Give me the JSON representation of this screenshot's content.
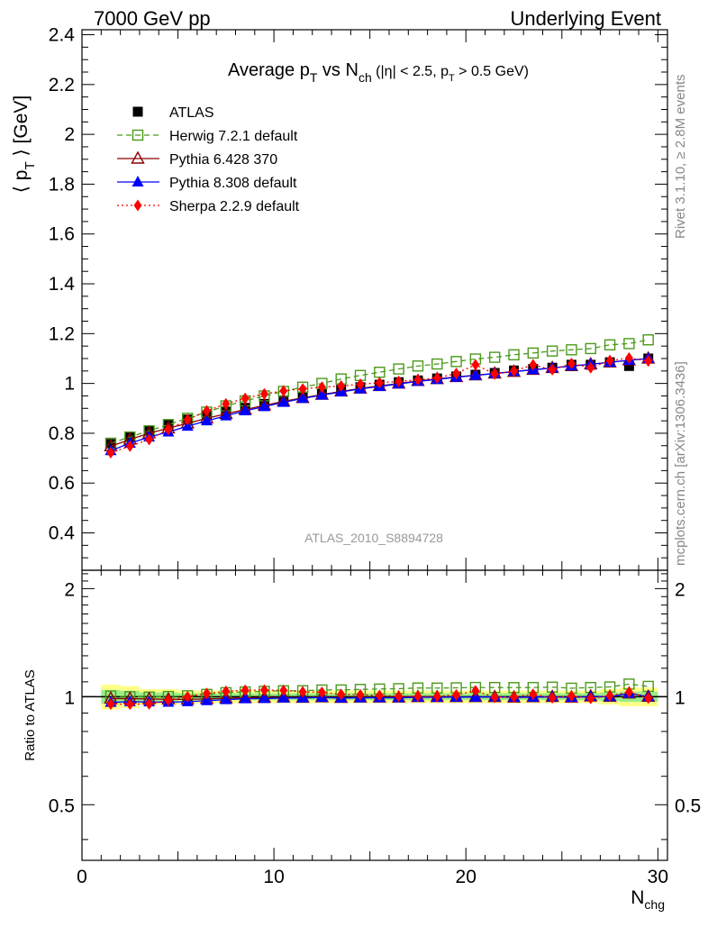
{
  "header": {
    "left": "7000 GeV pp",
    "right": "Underlying Event"
  },
  "side_labels": {
    "rivet": "Rivet 3.1.10, ≥ 2.8M events",
    "mcplots": "mcplots.cern.ch [arXiv:1306.3436]"
  },
  "chart_data": {
    "type": "scatter",
    "title": "Average p_T vs N_ch (|η| < 2.5, p_T > 0.5 GeV)",
    "analysis": "ATLAS_2010_S8894728",
    "xlabel": "N_chg",
    "ylabel": "⟨ p_T ⟩ [GeV]",
    "ratio_ylabel": "Ratio to ATLAS",
    "xlim": [
      0,
      30.5
    ],
    "ylim": [
      0.25,
      2.42
    ],
    "ratio_ylim": [
      0.35,
      2.25
    ],
    "x_ticks": [
      0,
      10,
      20,
      30
    ],
    "y_ticks": [
      0.4,
      0.6,
      0.8,
      1,
      1.2,
      1.4,
      1.6,
      1.8,
      2,
      2.2,
      2.4
    ],
    "ratio_ticks": [
      0.5,
      1,
      2
    ],
    "x": [
      1.5,
      2.5,
      3.5,
      4.5,
      5.5,
      6.5,
      7.5,
      8.5,
      9.5,
      10.5,
      11.5,
      12.5,
      13.5,
      14.5,
      15.5,
      16.5,
      17.5,
      18.5,
      19.5,
      20.5,
      21.5,
      22.5,
      23.5,
      24.5,
      25.5,
      26.5,
      27.5,
      28.5,
      29.5
    ],
    "series": [
      {
        "name": "ATLAS",
        "color": "#000000",
        "marker": "filled-square",
        "line": "none",
        "values": [
          0.757,
          0.785,
          0.812,
          0.834,
          0.855,
          0.872,
          0.887,
          0.902,
          0.918,
          0.932,
          0.948,
          0.958,
          0.975,
          0.985,
          0.995,
          1.005,
          1.012,
          1.02,
          1.028,
          1.035,
          1.042,
          1.052,
          1.058,
          1.063,
          1.075,
          1.075,
          1.085,
          1.07,
          1.1
        ],
        "band_lo": [
          0.92,
          0.93,
          0.95,
          0.95,
          0.96,
          0.96,
          0.96,
          0.96,
          0.96,
          0.96,
          0.96,
          0.96,
          0.96,
          0.96,
          0.96,
          0.96,
          0.96,
          0.96,
          0.96,
          0.96,
          0.96,
          0.96,
          0.96,
          0.96,
          0.96,
          0.96,
          0.95,
          0.94,
          0.94
        ],
        "band_hi": [
          1.08,
          1.07,
          1.05,
          1.05,
          1.04,
          1.04,
          1.04,
          1.04,
          1.04,
          1.04,
          1.04,
          1.04,
          1.04,
          1.04,
          1.04,
          1.04,
          1.04,
          1.04,
          1.04,
          1.04,
          1.04,
          1.04,
          1.04,
          1.04,
          1.04,
          1.04,
          1.05,
          1.06,
          1.06
        ]
      },
      {
        "name": "Herwig 7.2.1 default",
        "color": "#4a9a1a",
        "marker": "open-square",
        "line": "dashed",
        "values": [
          0.76,
          0.785,
          0.81,
          0.835,
          0.86,
          0.885,
          0.91,
          0.93,
          0.95,
          0.968,
          0.985,
          1.0,
          1.018,
          1.032,
          1.045,
          1.058,
          1.07,
          1.078,
          1.088,
          1.098,
          1.105,
          1.115,
          1.122,
          1.13,
          1.135,
          1.14,
          1.155,
          1.16,
          1.175
        ]
      },
      {
        "name": "Pythia 6.428 370",
        "color": "#8b0000",
        "marker": "open-triangle",
        "line": "solid",
        "values": [
          0.748,
          0.775,
          0.8,
          0.82,
          0.84,
          0.86,
          0.878,
          0.895,
          0.912,
          0.928,
          0.942,
          0.955,
          0.968,
          0.98,
          0.99,
          1.0,
          1.01,
          1.018,
          1.026,
          1.033,
          1.04,
          1.047,
          1.055,
          1.062,
          1.07,
          1.077,
          1.085,
          1.093,
          1.1
        ]
      },
      {
        "name": "Pythia 8.308 default",
        "color": "#0000ff",
        "marker": "filled-triangle",
        "line": "solid",
        "values": [
          0.73,
          0.76,
          0.785,
          0.805,
          0.828,
          0.85,
          0.87,
          0.89,
          0.907,
          0.924,
          0.94,
          0.953,
          0.966,
          0.978,
          0.988,
          0.998,
          1.008,
          1.016,
          1.025,
          1.032,
          1.04,
          1.048,
          1.055,
          1.062,
          1.07,
          1.077,
          1.085,
          1.093,
          1.1
        ]
      },
      {
        "name": "Sherpa 2.2.9 default",
        "color": "#ff0000",
        "marker": "filled-diamond",
        "line": "dotted",
        "values": [
          0.722,
          0.748,
          0.775,
          0.815,
          0.855,
          0.89,
          0.918,
          0.94,
          0.958,
          0.97,
          0.978,
          0.985,
          0.99,
          0.997,
          1.003,
          1.008,
          1.015,
          1.022,
          1.04,
          1.075,
          1.038,
          1.05,
          1.075,
          1.055,
          1.08,
          1.063,
          1.092,
          1.102,
          1.09
        ]
      }
    ]
  }
}
